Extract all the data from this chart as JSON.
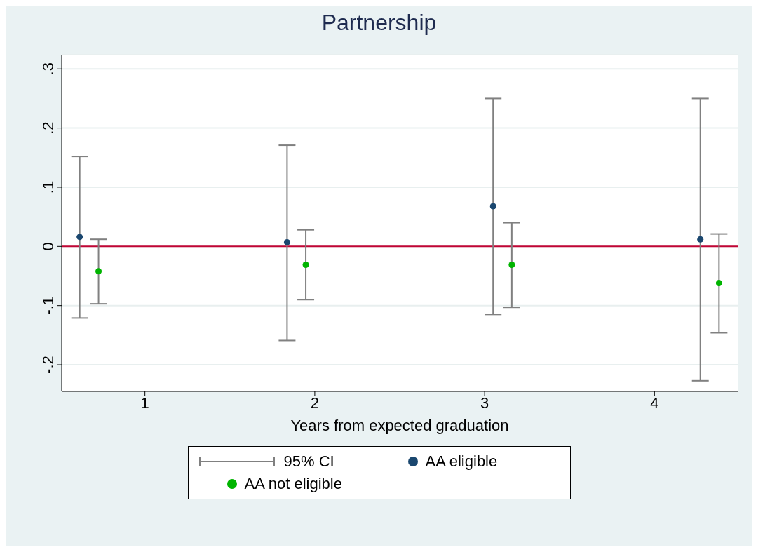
{
  "chart_data": {
    "type": "scatter",
    "title": "Partnership",
    "xlabel": "Years from expected graduation",
    "xlim": [
      0.51,
      4.49
    ],
    "xticks": [
      1,
      2,
      3,
      4
    ],
    "ylim": [
      -0.245,
      0.324
    ],
    "yticks": [
      {
        "value": 0.3,
        "label": ".3"
      },
      {
        "value": 0.2,
        "label": ".2"
      },
      {
        "value": 0.1,
        "label": ".1"
      },
      {
        "value": 0,
        "label": "0"
      },
      {
        "value": -0.1,
        "label": "-.1"
      },
      {
        "value": -0.2,
        "label": "-.2"
      }
    ],
    "grid": "y",
    "marker": "circle",
    "legend": "bottom",
    "annotations": [
      "95% CI"
    ],
    "ref_lines": [
      {
        "axis": "y",
        "value": 0,
        "color": "#c10534"
      }
    ],
    "series": [
      {
        "name": "AA eligible",
        "color": "#1a476f",
        "x": [
          0.616,
          1.837,
          3.05,
          4.27
        ],
        "values": [
          0.016,
          0.007,
          0.068,
          0.012
        ],
        "errors": [
          [
            -0.121,
            0.152
          ],
          [
            -0.159,
            0.171
          ],
          [
            -0.115,
            0.25
          ],
          [
            -0.227,
            0.25
          ]
        ]
      },
      {
        "name": "AA not eligible",
        "color": "#00b400",
        "x": [
          0.727,
          1.947,
          3.16,
          4.38
        ],
        "values": [
          -0.042,
          -0.031,
          -0.031,
          -0.062
        ],
        "errors": [
          [
            -0.097,
            0.012
          ],
          [
            -0.09,
            0.028
          ],
          [
            -0.103,
            0.04
          ],
          [
            -0.146,
            0.021
          ]
        ]
      }
    ]
  }
}
